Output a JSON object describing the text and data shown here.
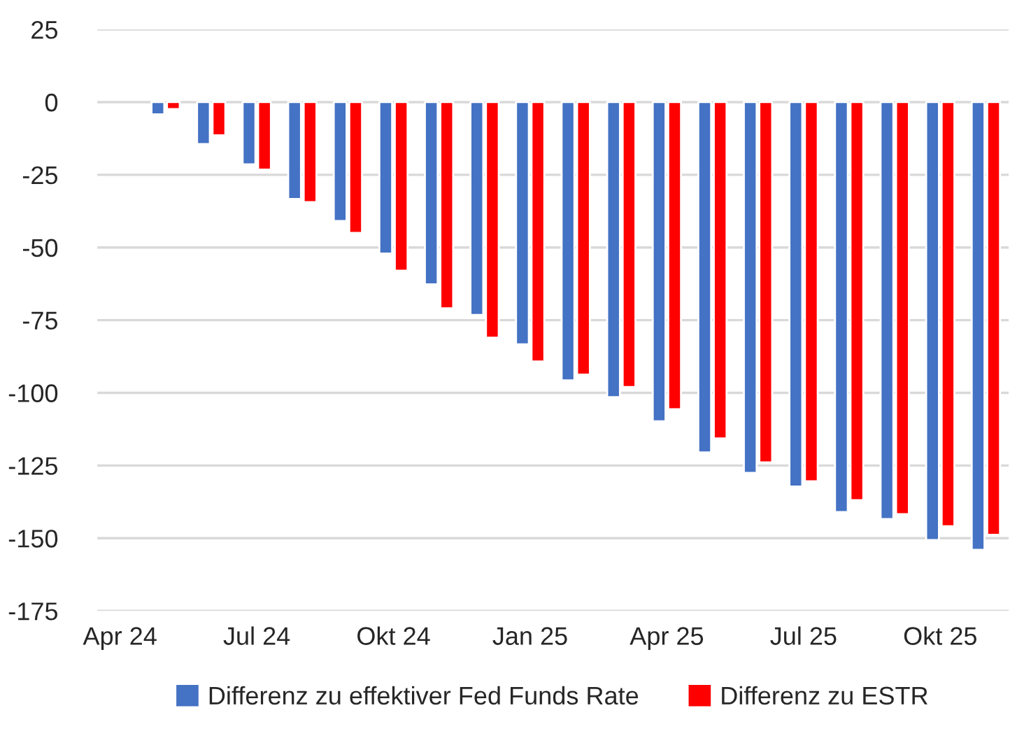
{
  "chart_data": {
    "type": "bar",
    "categories": [
      "Apr 24",
      null,
      null,
      "Jul 24",
      null,
      null,
      "Okt 24",
      null,
      null,
      "Jan 25",
      null,
      null,
      "Apr 25",
      null,
      null,
      "Jul 25",
      null,
      null,
      "Okt 25",
      null
    ],
    "series": [
      {
        "name": "Differenz zu effektiver Fed Funds Rate",
        "color": "#4472c4",
        "values": [
          null,
          -4.2,
          -14.4,
          -21.4,
          -33.3,
          -40.9,
          -52.1,
          -62.7,
          -73.2,
          -83.3,
          -95.7,
          -101.5,
          -109.8,
          -120.5,
          -127.5,
          -132.2,
          -141.0,
          -143.4,
          -150.6,
          -154.0
        ]
      },
      {
        "name": "Differenz zu ESTR",
        "color": "#ff0000",
        "values": [
          null,
          -2.4,
          -11.4,
          -23.2,
          -34.4,
          -45.0,
          -58.0,
          -70.9,
          -81.0,
          -89.2,
          -93.7,
          -98.0,
          -105.6,
          -115.7,
          -123.9,
          -130.4,
          -136.9,
          -141.7,
          -145.9,
          -148.8
        ]
      }
    ],
    "ylim": [
      -175,
      25
    ],
    "yticks": [
      25,
      0,
      -25,
      -50,
      -75,
      -100,
      -125,
      -150,
      -175
    ],
    "grid": "y",
    "legend": "bottom"
  }
}
